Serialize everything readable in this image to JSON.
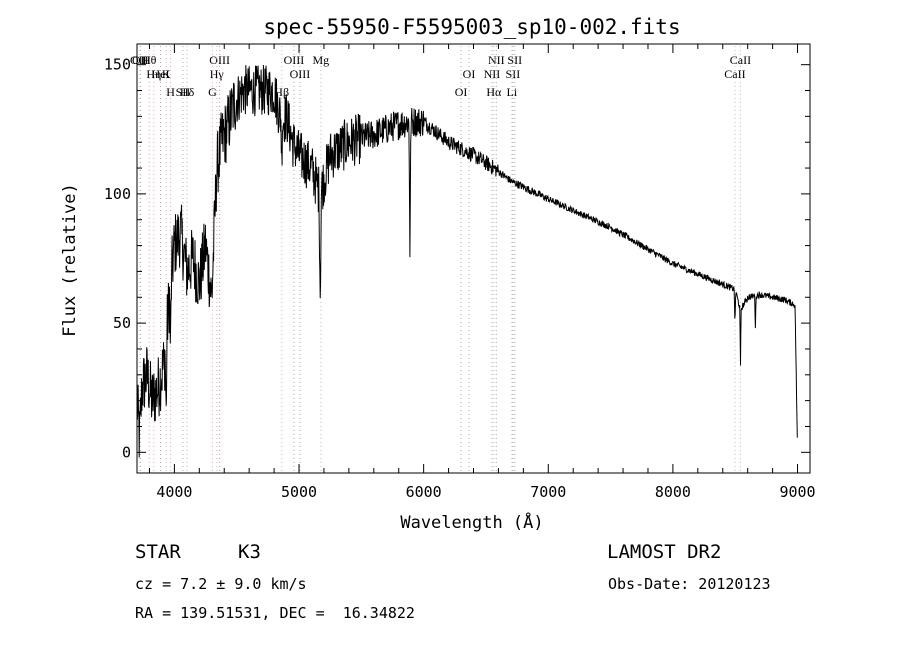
{
  "chart_data": {
    "type": "line",
    "title": "spec-55950-F5595003_sp10-002.fits",
    "xlabel": "Wavelength (Å)",
    "ylabel": "Flux (relative)",
    "xlim": [
      3700,
      9100
    ],
    "ylim": [
      -8,
      158
    ],
    "xticks": [
      4000,
      5000,
      6000,
      7000,
      8000,
      9000
    ],
    "yticks": [
      0,
      50,
      100,
      150
    ],
    "spectrum_anchors": {
      "x": [
        3700,
        3720,
        3740,
        3780,
        3820,
        3870,
        3920,
        3960,
        4000,
        4050,
        4100,
        4150,
        4200,
        4250,
        4300,
        4340,
        4380,
        4420,
        4480,
        4550,
        4600,
        4700,
        4800,
        4861,
        4900,
        4950,
        5000,
        5100,
        5170,
        5250,
        5400,
        5600,
        5800,
        5890,
        6000,
        6200,
        6400,
        6563,
        6700,
        7000,
        7500,
        8000,
        8500,
        8542,
        8600,
        8700,
        8800,
        8900,
        8980,
        9000
      ],
      "y": [
        20,
        5,
        25,
        30,
        20,
        25,
        35,
        60,
        80,
        85,
        70,
        75,
        65,
        80,
        60,
        110,
        120,
        125,
        135,
        140,
        140,
        140,
        140,
        128,
        130,
        120,
        115,
        110,
        100,
        115,
        120,
        123,
        127,
        128,
        128,
        120,
        115,
        110,
        105,
        98,
        87,
        73,
        63,
        55,
        60,
        61,
        60,
        59,
        57,
        0
      ]
    },
    "spectral_lines": [
      {
        "label": "Hθ",
        "wavelength": 3798,
        "color": "#e4b0b0"
      },
      {
        "label": "K",
        "wavelength": 3934,
        "color": "#e4b0b0"
      },
      {
        "label": "Hδ",
        "wavelength": 4102,
        "color": "#e4b0b0"
      },
      {
        "label": "OII",
        "wavelength": 3727,
        "color": "#aaaaaa"
      },
      {
        "label": "HeI",
        "wavelength": 3889,
        "color": "#aaaaaa"
      },
      {
        "label": "SII",
        "wavelength": 4069,
        "color": "#aaaaaa"
      },
      {
        "label": "OIII",
        "wavelength": 3727,
        "color": "#aaaaaa"
      },
      {
        "label": "Hη",
        "wavelength": 3835,
        "color": "#e4b0b0"
      },
      {
        "label": "H",
        "wavelength": 3969,
        "color": "#e4b0b0"
      },
      {
        "label": "OIII",
        "wavelength": 4363,
        "color": "#aaaaaa"
      },
      {
        "label": "Hγ",
        "wavelength": 4340,
        "color": "#e4b0b0"
      },
      {
        "label": "G",
        "wavelength": 4305,
        "color": "#e4b0b0"
      },
      {
        "label": "OIII",
        "wavelength": 4959,
        "color": "#aaaaaa"
      },
      {
        "label": "OIII",
        "wavelength": 5007,
        "color": "#aaaaaa"
      },
      {
        "label": "Hβ",
        "wavelength": 4861,
        "color": "#e4b0b0"
      },
      {
        "label": "Mg",
        "wavelength": 5175,
        "color": "#e4b0b0"
      },
      {
        "label": "OI",
        "wavelength": 6364,
        "color": "#aaaaaa"
      },
      {
        "label": "OI",
        "wavelength": 6300,
        "color": "#aaaaaa"
      },
      {
        "label": "NII",
        "wavelength": 6583,
        "color": "#aaaaaa"
      },
      {
        "label": "SII",
        "wavelength": 6716,
        "color": "#aaaaaa"
      },
      {
        "label": "Hα",
        "wavelength": 6563,
        "color": "#e4b0b0"
      },
      {
        "label": "SII",
        "wavelength": 6731,
        "color": "#aaaaaa"
      },
      {
        "label": "NII",
        "wavelength": 6548,
        "color": "#aaaaaa"
      },
      {
        "label": "Li",
        "wavelength": 6708,
        "color": "#e4b0b0"
      },
      {
        "label": "CaII",
        "wavelength": 8542,
        "color": "#e4b0b0"
      },
      {
        "label": "CaII",
        "wavelength": 8498,
        "color": "#e4b0b0"
      }
    ]
  },
  "info": {
    "object_class": "STAR",
    "subclass": "K3",
    "survey": "LAMOST DR2",
    "cz": "cz = 7.2 ± 9.0 km/s",
    "obs_date": "Obs-Date: 20120123",
    "coords": "RA = 139.51531, DEC =  16.34822"
  }
}
